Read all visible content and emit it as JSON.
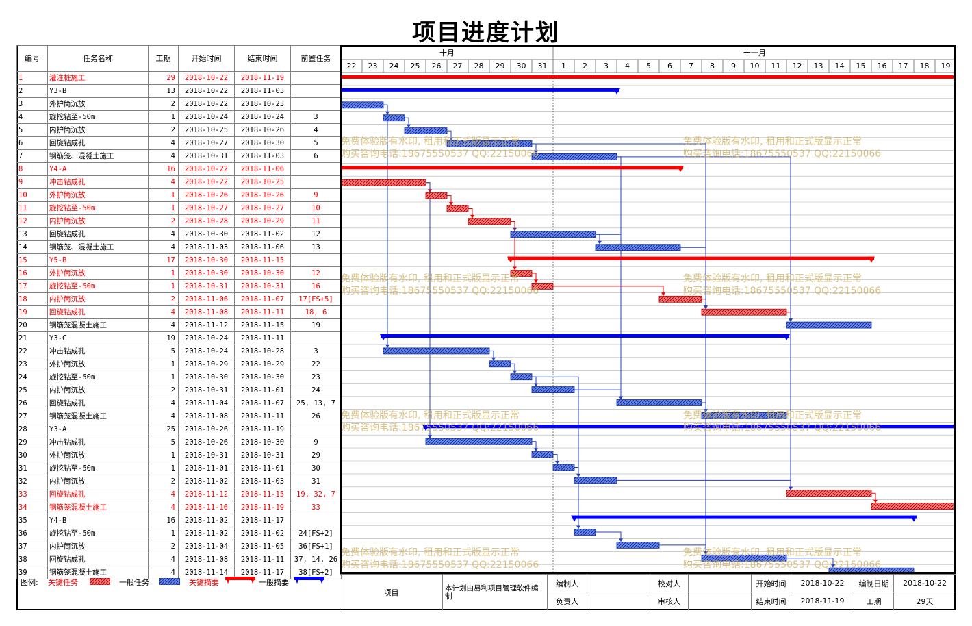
{
  "title": "项目进度计划",
  "columns": [
    "编号",
    "任务名称",
    "工期",
    "开始时间",
    "结束时间",
    "前置任务"
  ],
  "months": [
    "十月",
    "十一月"
  ],
  "days": [
    "22",
    "23",
    "24",
    "25",
    "26",
    "27",
    "28",
    "29",
    "30",
    "31",
    "1",
    "2",
    "3",
    "4",
    "5",
    "6",
    "7",
    "8",
    "9",
    "10",
    "11",
    "12",
    "13",
    "14",
    "15",
    "16",
    "17",
    "18",
    "19"
  ],
  "colors": {
    "critical": "#ff0000",
    "normal": "#0000ff",
    "critical_bar": "#e05050",
    "normal_bar": "#4060d0",
    "link": "#2040c0"
  },
  "tasks": [
    {
      "id": "1",
      "name": "灌注桩施工",
      "dur": "29",
      "start": "2018-10-22",
      "end": "2018-11-19",
      "pred": "",
      "level": 0,
      "summary": true,
      "critical": true,
      "s": 0,
      "e": 29
    },
    {
      "id": "2",
      "name": "Y3-B",
      "dur": "13",
      "start": "2018-10-22",
      "end": "2018-11-03",
      "pred": "",
      "level": 1,
      "summary": true,
      "critical": false,
      "s": 0,
      "e": 13
    },
    {
      "id": "3",
      "name": "外护筒沉放",
      "dur": "2",
      "start": "2018-10-22",
      "end": "2018-10-23",
      "pred": "",
      "level": 2,
      "summary": false,
      "critical": false,
      "s": 0,
      "e": 2
    },
    {
      "id": "4",
      "name": "旋挖钻至-50m",
      "dur": "1",
      "start": "2018-10-24",
      "end": "2018-10-24",
      "pred": "3",
      "level": 2,
      "summary": false,
      "critical": false,
      "s": 2,
      "e": 3
    },
    {
      "id": "5",
      "name": "内护筒沉放",
      "dur": "2",
      "start": "2018-10-25",
      "end": "2018-10-26",
      "pred": "4",
      "level": 2,
      "summary": false,
      "critical": false,
      "s": 3,
      "e": 5
    },
    {
      "id": "6",
      "name": "回旋钻成孔",
      "dur": "4",
      "start": "2018-10-27",
      "end": "2018-10-30",
      "pred": "5",
      "level": 2,
      "summary": false,
      "critical": false,
      "s": 5,
      "e": 9
    },
    {
      "id": "7",
      "name": "钢筋笼、混凝土施工",
      "dur": "4",
      "start": "2018-10-31",
      "end": "2018-11-03",
      "pred": "6",
      "level": 2,
      "summary": false,
      "critical": false,
      "s": 9,
      "e": 13
    },
    {
      "id": "8",
      "name": "Y4-A",
      "dur": "16",
      "start": "2018-10-22",
      "end": "2018-11-06",
      "pred": "",
      "level": 1,
      "summary": true,
      "critical": true,
      "s": 0,
      "e": 16
    },
    {
      "id": "9",
      "name": "冲击钻成孔",
      "dur": "4",
      "start": "2018-10-22",
      "end": "2018-10-25",
      "pred": "",
      "level": 2,
      "summary": false,
      "critical": true,
      "s": 0,
      "e": 4
    },
    {
      "id": "10",
      "name": "外护筒沉放",
      "dur": "1",
      "start": "2018-10-26",
      "end": "2018-10-26",
      "pred": "9",
      "level": 2,
      "summary": false,
      "critical": true,
      "s": 4,
      "e": 5
    },
    {
      "id": "11",
      "name": "旋挖钻至-50m",
      "dur": "1",
      "start": "2018-10-27",
      "end": "2018-10-27",
      "pred": "10",
      "level": 2,
      "summary": false,
      "critical": true,
      "s": 5,
      "e": 6
    },
    {
      "id": "12",
      "name": "内护筒沉放",
      "dur": "2",
      "start": "2018-10-28",
      "end": "2018-10-29",
      "pred": "11",
      "level": 2,
      "summary": false,
      "critical": true,
      "s": 6,
      "e": 8
    },
    {
      "id": "13",
      "name": "回旋钻成孔",
      "dur": "4",
      "start": "2018-10-30",
      "end": "2018-11-02",
      "pred": "12",
      "level": 2,
      "summary": false,
      "critical": false,
      "s": 8,
      "e": 12
    },
    {
      "id": "14",
      "name": "钢筋笼、混凝土施工",
      "dur": "4",
      "start": "2018-11-03",
      "end": "2018-11-06",
      "pred": "13",
      "level": 2,
      "summary": false,
      "critical": false,
      "s": 12,
      "e": 16
    },
    {
      "id": "15",
      "name": "Y5-B",
      "dur": "17",
      "start": "2018-10-30",
      "end": "2018-11-15",
      "pred": "",
      "level": 1,
      "summary": true,
      "critical": true,
      "s": 8,
      "e": 25
    },
    {
      "id": "16",
      "name": "外护筒沉放",
      "dur": "1",
      "start": "2018-10-30",
      "end": "2018-10-30",
      "pred": "12",
      "level": 2,
      "summary": false,
      "critical": true,
      "s": 8,
      "e": 9
    },
    {
      "id": "17",
      "name": "旋挖钻至-50m",
      "dur": "1",
      "start": "2018-10-31",
      "end": "2018-10-31",
      "pred": "16",
      "level": 2,
      "summary": false,
      "critical": true,
      "s": 9,
      "e": 10
    },
    {
      "id": "18",
      "name": "内护筒沉放",
      "dur": "2",
      "start": "2018-11-06",
      "end": "2018-11-07",
      "pred": "17[FS+5]",
      "level": 2,
      "summary": false,
      "critical": true,
      "s": 15,
      "e": 17
    },
    {
      "id": "19",
      "name": "回旋钻成孔",
      "dur": "4",
      "start": "2018-11-08",
      "end": "2018-11-11",
      "pred": "18, 6",
      "level": 2,
      "summary": false,
      "critical": true,
      "s": 17,
      "e": 21
    },
    {
      "id": "20",
      "name": "钢筋笼混凝土施工",
      "dur": "4",
      "start": "2018-11-12",
      "end": "2018-11-15",
      "pred": "19",
      "level": 2,
      "summary": false,
      "critical": false,
      "s": 21,
      "e": 25
    },
    {
      "id": "21",
      "name": "Y3-C",
      "dur": "19",
      "start": "2018-10-24",
      "end": "2018-11-11",
      "pred": "",
      "level": 1,
      "summary": true,
      "critical": false,
      "s": 2,
      "e": 21
    },
    {
      "id": "22",
      "name": "冲击钻成孔",
      "dur": "5",
      "start": "2018-10-24",
      "end": "2018-10-28",
      "pred": "3",
      "level": 2,
      "summary": false,
      "critical": false,
      "s": 2,
      "e": 7
    },
    {
      "id": "23",
      "name": "外护筒沉放",
      "dur": "1",
      "start": "2018-10-29",
      "end": "2018-10-29",
      "pred": "22",
      "level": 2,
      "summary": false,
      "critical": false,
      "s": 7,
      "e": 8
    },
    {
      "id": "24",
      "name": "旋挖钻至-50m",
      "dur": "1",
      "start": "2018-10-30",
      "end": "2018-10-30",
      "pred": "23",
      "level": 2,
      "summary": false,
      "critical": false,
      "s": 8,
      "e": 9
    },
    {
      "id": "25",
      "name": "内护筒沉放",
      "dur": "2",
      "start": "2018-10-31",
      "end": "2018-11-01",
      "pred": "24",
      "level": 2,
      "summary": false,
      "critical": false,
      "s": 9,
      "e": 11
    },
    {
      "id": "26",
      "name": "回旋钻成孔",
      "dur": "4",
      "start": "2018-11-04",
      "end": "2018-11-07",
      "pred": "25, 13, 7",
      "level": 2,
      "summary": false,
      "critical": false,
      "s": 13,
      "e": 17
    },
    {
      "id": "27",
      "name": "钢筋笼混凝土施工",
      "dur": "4",
      "start": "2018-11-08",
      "end": "2018-11-11",
      "pred": "26",
      "level": 2,
      "summary": false,
      "critical": false,
      "s": 17,
      "e": 21
    },
    {
      "id": "28",
      "name": "Y3-A",
      "dur": "25",
      "start": "2018-10-26",
      "end": "2018-11-19",
      "pred": "",
      "level": 1,
      "summary": true,
      "critical": false,
      "s": 4,
      "e": 29
    },
    {
      "id": "29",
      "name": "冲击钻成孔",
      "dur": "5",
      "start": "2018-10-26",
      "end": "2018-10-30",
      "pred": "9",
      "level": 2,
      "summary": false,
      "critical": false,
      "s": 4,
      "e": 9
    },
    {
      "id": "30",
      "name": "外护筒沉放",
      "dur": "1",
      "start": "2018-10-31",
      "end": "2018-10-31",
      "pred": "29",
      "level": 2,
      "summary": false,
      "critical": false,
      "s": 9,
      "e": 10
    },
    {
      "id": "31",
      "name": "旋挖钻至-50m",
      "dur": "1",
      "start": "2018-11-01",
      "end": "2018-11-01",
      "pred": "30",
      "level": 2,
      "summary": false,
      "critical": false,
      "s": 10,
      "e": 11
    },
    {
      "id": "32",
      "name": "内护筒沉放",
      "dur": "2",
      "start": "2018-11-02",
      "end": "2018-11-03",
      "pred": "31",
      "level": 2,
      "summary": false,
      "critical": false,
      "s": 11,
      "e": 13
    },
    {
      "id": "33",
      "name": "回旋钻成孔",
      "dur": "4",
      "start": "2018-11-12",
      "end": "2018-11-15",
      "pred": "19, 32, 7",
      "level": 2,
      "summary": false,
      "critical": true,
      "s": 21,
      "e": 25
    },
    {
      "id": "34",
      "name": "钢筋笼混凝土施工",
      "dur": "4",
      "start": "2018-11-16",
      "end": "2018-11-19",
      "pred": "33",
      "level": 2,
      "summary": false,
      "critical": true,
      "s": 25,
      "e": 29
    },
    {
      "id": "35",
      "name": "Y4-B",
      "dur": "16",
      "start": "2018-11-02",
      "end": "2018-11-17",
      "pred": "",
      "level": 1,
      "summary": true,
      "critical": false,
      "s": 11,
      "e": 27
    },
    {
      "id": "36",
      "name": "旋挖钻至-50m",
      "dur": "1",
      "start": "2018-11-02",
      "end": "2018-11-02",
      "pred": "24[FS+2]",
      "level": 2,
      "summary": false,
      "critical": false,
      "s": 11,
      "e": 12
    },
    {
      "id": "37",
      "name": "内护筒沉放",
      "dur": "2",
      "start": "2018-11-04",
      "end": "2018-11-05",
      "pred": "36[FS+1]",
      "level": 2,
      "summary": false,
      "critical": false,
      "s": 13,
      "e": 15
    },
    {
      "id": "38",
      "name": "回旋钻成孔",
      "dur": "4",
      "start": "2018-11-08",
      "end": "2018-11-11",
      "pred": "37, 14, 26",
      "level": 2,
      "summary": false,
      "critical": false,
      "s": 17,
      "e": 21
    },
    {
      "id": "39",
      "name": "钢筋笼混凝土施工",
      "dur": "4",
      "start": "2018-11-14",
      "end": "2018-11-17",
      "pred": "38[FS+2]",
      "level": 2,
      "summary": false,
      "critical": false,
      "s": 23,
      "e": 27
    }
  ],
  "links": [
    [
      3,
      4
    ],
    [
      4,
      5
    ],
    [
      5,
      6
    ],
    [
      6,
      7
    ],
    [
      9,
      10
    ],
    [
      10,
      11
    ],
    [
      11,
      12
    ],
    [
      12,
      13
    ],
    [
      13,
      14
    ],
    [
      12,
      16
    ],
    [
      16,
      17
    ],
    [
      17,
      18
    ],
    [
      18,
      19
    ],
    [
      19,
      20
    ],
    [
      3,
      22
    ],
    [
      22,
      23
    ],
    [
      23,
      24
    ],
    [
      24,
      25
    ],
    [
      25,
      26
    ],
    [
      26,
      27
    ],
    [
      9,
      29
    ],
    [
      29,
      30
    ],
    [
      30,
      31
    ],
    [
      31,
      32
    ],
    [
      32,
      33
    ],
    [
      19,
      33
    ],
    [
      33,
      34
    ],
    [
      24,
      36
    ],
    [
      36,
      37
    ],
    [
      37,
      38
    ],
    [
      38,
      39
    ],
    [
      6,
      19
    ],
    [
      13,
      26
    ],
    [
      7,
      26
    ],
    [
      14,
      38
    ],
    [
      26,
      38
    ],
    [
      7,
      33
    ]
  ],
  "legend": {
    "label": "图例:",
    "critical_task": "关键任务",
    "normal_task": "一般任务",
    "critical_summary": "关键摘要",
    "normal_summary": "一般摘要"
  },
  "footer": {
    "project_label": "项目",
    "note": "本计划由易利项目管理软件编制",
    "compiler_label": "编制人",
    "compiler": "",
    "checker_label": "校对人",
    "checker": "",
    "start_label": "开始时间",
    "start": "2018-10-22",
    "date_label": "编制日期",
    "date": "2018-10-22",
    "owner_label": "负责人",
    "owner": "",
    "reviewer_label": "审核人",
    "reviewer": "",
    "end_label": "结束时间",
    "end": "2018-11-19",
    "duration_label": "工期",
    "duration": "29天"
  },
  "watermark": {
    "line1": "免费体验版有水印, 租用和正式版显示正常",
    "line2": "购买咨询电话:18675550537 QQ:22150066"
  }
}
